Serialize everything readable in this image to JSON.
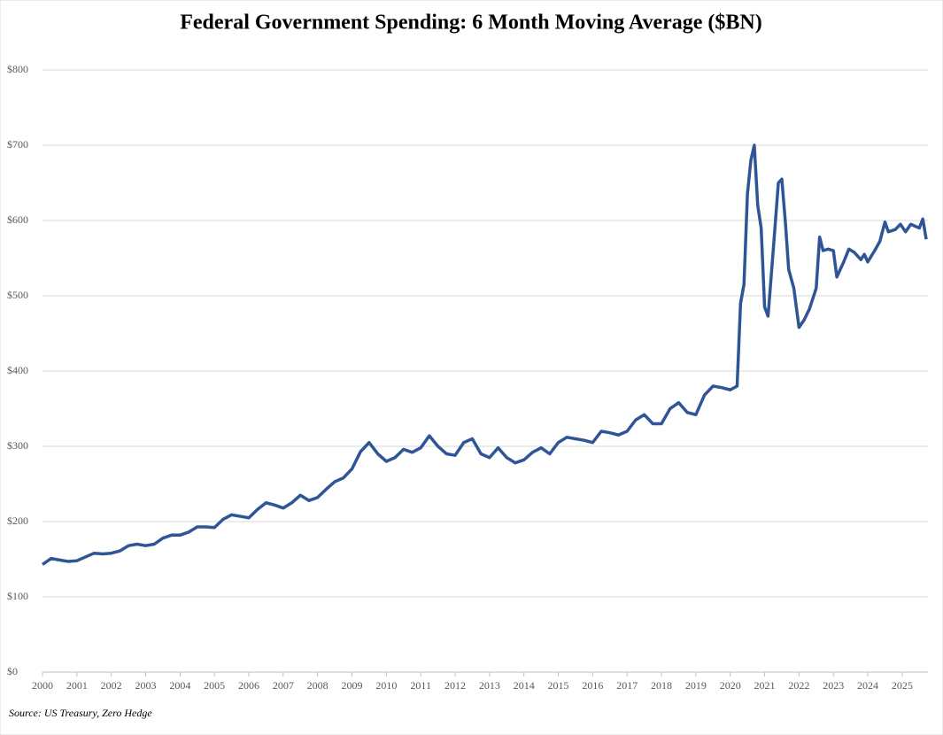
{
  "chart_data": {
    "type": "line",
    "title": "Federal Government Spending: 6 Month Moving Average ($BN)",
    "source": "Source: US Treasury, Zero Hedge",
    "color": "#2f5597",
    "grid": true,
    "x": [
      2000.0,
      2000.25,
      2000.5,
      2000.75,
      2001.0,
      2001.25,
      2001.5,
      2001.75,
      2002.0,
      2002.25,
      2002.5,
      2002.75,
      2003.0,
      2003.25,
      2003.5,
      2003.75,
      2004.0,
      2004.25,
      2004.5,
      2004.75,
      2005.0,
      2005.25,
      2005.5,
      2005.75,
      2006.0,
      2006.25,
      2006.5,
      2006.75,
      2007.0,
      2007.25,
      2007.5,
      2007.75,
      2008.0,
      2008.25,
      2008.5,
      2008.75,
      2009.0,
      2009.25,
      2009.5,
      2009.75,
      2010.0,
      2010.25,
      2010.5,
      2010.75,
      2011.0,
      2011.25,
      2011.5,
      2011.75,
      2012.0,
      2012.25,
      2012.5,
      2012.75,
      2013.0,
      2013.25,
      2013.5,
      2013.75,
      2014.0,
      2014.25,
      2014.5,
      2014.75,
      2015.0,
      2015.25,
      2015.5,
      2015.75,
      2016.0,
      2016.25,
      2016.5,
      2016.75,
      2017.0,
      2017.25,
      2017.5,
      2017.75,
      2018.0,
      2018.25,
      2018.5,
      2018.75,
      2019.0,
      2019.25,
      2019.5,
      2019.75,
      2020.0,
      2020.2,
      2020.3,
      2020.4,
      2020.5,
      2020.6,
      2020.7,
      2020.8,
      2020.9,
      2021.0,
      2021.1,
      2021.25,
      2021.4,
      2021.5,
      2021.6,
      2021.7,
      2021.85,
      2022.0,
      2022.15,
      2022.3,
      2022.5,
      2022.6,
      2022.7,
      2022.85,
      2023.0,
      2023.1,
      2023.3,
      2023.45,
      2023.6,
      2023.8,
      2023.9,
      2024.0,
      2024.2,
      2024.35,
      2024.5,
      2024.6,
      2024.8,
      2024.95,
      2025.1,
      2025.25,
      2025.5,
      2025.6,
      2025.7
    ],
    "values": [
      143,
      151,
      149,
      147,
      148,
      153,
      158,
      157,
      158,
      161,
      168,
      170,
      168,
      170,
      178,
      182,
      182,
      186,
      193,
      193,
      192,
      203,
      209,
      207,
      205,
      216,
      225,
      222,
      218,
      225,
      235,
      228,
      232,
      243,
      253,
      258,
      270,
      293,
      305,
      290,
      280,
      285,
      296,
      292,
      298,
      314,
      300,
      290,
      288,
      305,
      310,
      290,
      285,
      298,
      285,
      278,
      282,
      292,
      298,
      290,
      305,
      312,
      310,
      308,
      305,
      320,
      318,
      315,
      320,
      335,
      342,
      330,
      330,
      350,
      358,
      345,
      342,
      368,
      380,
      378,
      375,
      380,
      490,
      515,
      635,
      680,
      700,
      620,
      590,
      485,
      473,
      560,
      650,
      655,
      600,
      535,
      510,
      458,
      468,
      482,
      510,
      578,
      560,
      562,
      560,
      525,
      545,
      562,
      558,
      548,
      555,
      545,
      560,
      572,
      598,
      585,
      588,
      595,
      585,
      595,
      590,
      602,
      575
    ],
    "xlim": [
      2000,
      2025.75
    ],
    "xticks": [
      2000,
      2001,
      2002,
      2003,
      2004,
      2005,
      2006,
      2007,
      2008,
      2009,
      2010,
      2011,
      2012,
      2013,
      2014,
      2015,
      2016,
      2017,
      2018,
      2019,
      2020,
      2021,
      2022,
      2023,
      2024,
      2025
    ],
    "ylim": [
      0,
      800
    ],
    "yticks": [
      {
        "value": 0,
        "label": "$0"
      },
      {
        "value": 100,
        "label": "$100"
      },
      {
        "value": 200,
        "label": "$200"
      },
      {
        "value": 300,
        "label": "$300"
      },
      {
        "value": 400,
        "label": "$400"
      },
      {
        "value": 500,
        "label": "$500"
      },
      {
        "value": 600,
        "label": "$600"
      },
      {
        "value": 700,
        "label": "$700"
      },
      {
        "value": 800,
        "label": "$800"
      }
    ]
  }
}
